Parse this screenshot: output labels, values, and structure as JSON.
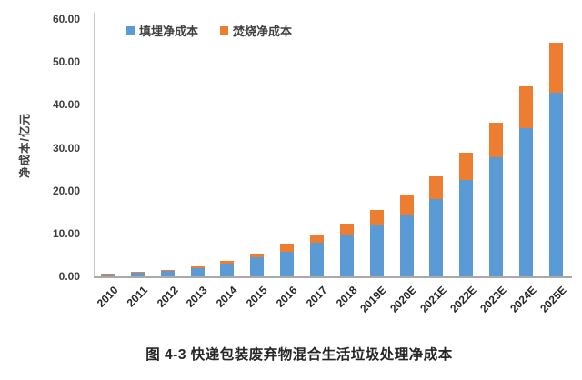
{
  "figure": {
    "caption": "图 4-3 快递包装废弃物混合生活垃圾处理净成本"
  },
  "chart_data": {
    "type": "bar",
    "stacked": true,
    "title": "",
    "xlabel": "",
    "ylabel": "净成本/亿元",
    "ylim": [
      0,
      60
    ],
    "yticks": [
      "0.00",
      "10.00",
      "20.00",
      "30.00",
      "40.00",
      "50.00",
      "60.00"
    ],
    "grid": false,
    "legend_position": "top-left",
    "categories": [
      "2010",
      "2011",
      "2012",
      "2013",
      "2014",
      "2015",
      "2016",
      "2017",
      "2018",
      "2019E",
      "2020E",
      "2021E",
      "2022E",
      "2023E",
      "2024E",
      "2025E"
    ],
    "series": [
      {
        "name": "填埋净成本",
        "color": "#5B9BD5",
        "values": [
          0.5,
          0.9,
          1.3,
          2.0,
          3.0,
          4.4,
          5.8,
          7.9,
          9.8,
          12.0,
          14.5,
          18.1,
          22.4,
          27.8,
          34.5,
          42.8
        ]
      },
      {
        "name": "焚烧净成本",
        "color": "#ED7D31",
        "values": [
          0.1,
          0.1,
          0.2,
          0.3,
          0.5,
          0.8,
          1.9,
          1.9,
          2.6,
          3.4,
          4.4,
          5.3,
          6.5,
          8.0,
          9.8,
          11.7
        ]
      }
    ],
    "totals": [
      0.6,
      1.0,
      1.5,
      2.3,
      3.5,
      5.2,
      7.7,
      9.8,
      12.4,
      15.4,
      18.9,
      23.4,
      28.9,
      35.8,
      44.3,
      54.5
    ],
    "axis_colors": {
      "line": "#c9c9c9",
      "baseline": "#a9a9a9",
      "tick_text": "#3d3d3d"
    }
  }
}
